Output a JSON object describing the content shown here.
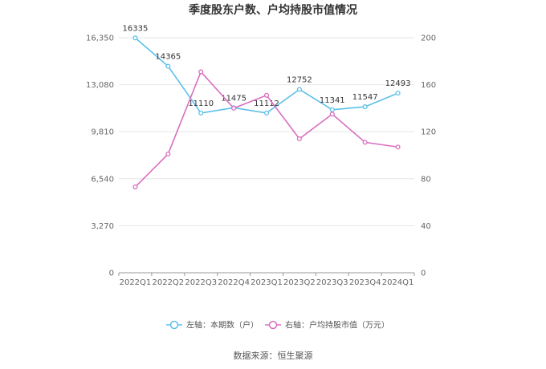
{
  "chart_data": {
    "type": "line",
    "title": "季度股东户数、户均持股市值情况",
    "categories": [
      "2022Q1",
      "2022Q2",
      "2022Q3",
      "2022Q4",
      "2023Q1",
      "2023Q2",
      "2023Q3",
      "2023Q4",
      "2024Q1"
    ],
    "series": [
      {
        "name": "左轴：本期数（户）",
        "axis": "left",
        "color": "#5bc0eb",
        "values": [
          16335,
          14365,
          11110,
          11475,
          11112,
          12752,
          11341,
          11547,
          12493
        ],
        "labels": [
          "16335",
          "14365",
          "11110",
          "11475",
          "11112",
          "12752",
          "11341",
          "11547",
          "12493"
        ]
      },
      {
        "name": "右轴：户均持股市值（万元）",
        "axis": "right",
        "color": "#d86fbf",
        "values": [
          73,
          101,
          171,
          140,
          151,
          114,
          135,
          111,
          107
        ]
      }
    ],
    "left_axis": {
      "min": 0,
      "max": 16350,
      "ticks": [
        "0",
        "3,270",
        "6,540",
        "9,810",
        "13,080",
        "16,350"
      ]
    },
    "right_axis": {
      "min": 0,
      "max": 200,
      "ticks": [
        "0",
        "40",
        "80",
        "120",
        "160",
        "200"
      ]
    },
    "grid": true,
    "legend_position": "bottom"
  },
  "source": "数据来源：恒生聚源"
}
